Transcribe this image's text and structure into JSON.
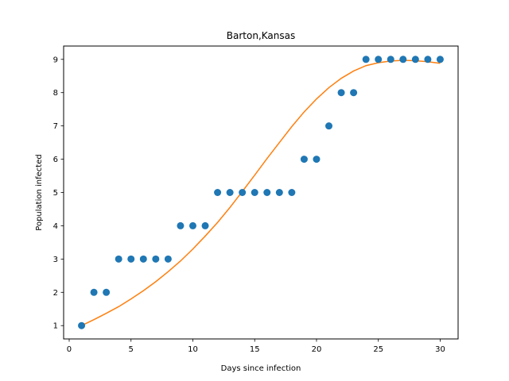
{
  "chart_data": {
    "type": "scatter",
    "title": "Barton,Kansas",
    "xlabel": "Days since infection",
    "ylabel": "Population infected",
    "xlim": [
      -0.45,
      31.45
    ],
    "ylim": [
      0.6,
      9.4
    ],
    "xticks": [
      0,
      5,
      10,
      15,
      20,
      25,
      30
    ],
    "yticks": [
      1,
      2,
      3,
      4,
      5,
      6,
      7,
      8,
      9
    ],
    "grid": false,
    "series": [
      {
        "kind": "scatter",
        "color": "#1f77b4",
        "x": [
          1,
          2,
          3,
          4,
          5,
          6,
          7,
          8,
          9,
          10,
          11,
          12,
          13,
          14,
          15,
          16,
          17,
          18,
          19,
          20,
          21,
          22,
          23,
          24,
          25,
          26,
          27,
          28,
          29,
          30
        ],
        "y": [
          1,
          2,
          2,
          3,
          3,
          3,
          3,
          3,
          4,
          4,
          4,
          5,
          5,
          5,
          5,
          5,
          5,
          5,
          6,
          6,
          7,
          8,
          8,
          9,
          9,
          9,
          9,
          9,
          9,
          9
        ]
      },
      {
        "kind": "line",
        "color": "#ff7f0e",
        "x": [
          1,
          2,
          3,
          4,
          5,
          6,
          7,
          8,
          9,
          10,
          11,
          12,
          13,
          14,
          15,
          16,
          17,
          18,
          19,
          20,
          21,
          22,
          23,
          24,
          25,
          26,
          27,
          28,
          29,
          30
        ],
        "y": [
          1.0,
          1.18,
          1.37,
          1.57,
          1.8,
          2.05,
          2.32,
          2.62,
          2.94,
          3.3,
          3.69,
          4.1,
          4.55,
          5.03,
          5.52,
          6.02,
          6.5,
          6.98,
          7.42,
          7.81,
          8.15,
          8.43,
          8.65,
          8.81,
          8.9,
          8.95,
          8.97,
          8.96,
          8.93,
          8.88
        ]
      }
    ]
  }
}
